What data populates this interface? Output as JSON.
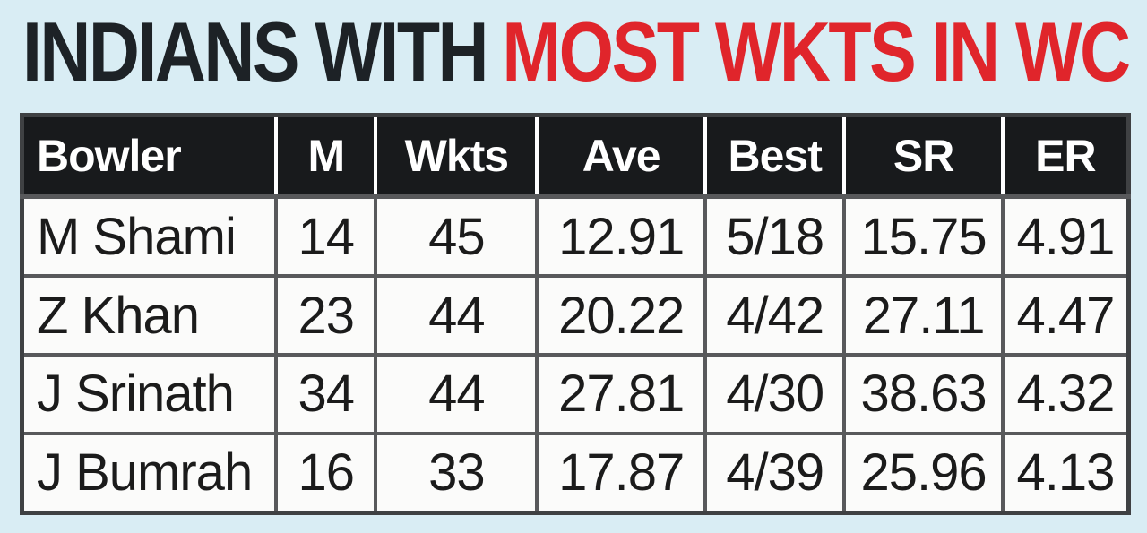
{
  "title": {
    "part1": "INDIANS WITH",
    "part2": "MOST WKTS IN WC"
  },
  "colors": {
    "background": "#d9edf4",
    "title_black": "#1d2226",
    "title_red": "#e0252b",
    "header_bg": "#181a1c",
    "header_text": "#ffffff",
    "cell_bg": "#fbfbfa",
    "grid": "#58595b"
  },
  "chart_data": {
    "type": "table",
    "title": "INDIANS WITH MOST WKTS IN WC",
    "columns": [
      "Bowler",
      "M",
      "Wkts",
      "Ave",
      "Best",
      "SR",
      "ER"
    ],
    "rows": [
      [
        "M Shami",
        "14",
        "45",
        "12.91",
        "5/18",
        "15.75",
        "4.91"
      ],
      [
        "Z Khan",
        "23",
        "44",
        "20.22",
        "4/42",
        "27.11",
        "4.47"
      ],
      [
        "J Srinath",
        "34",
        "44",
        "27.81",
        "4/30",
        "38.63",
        "4.32"
      ],
      [
        "J Bumrah",
        "16",
        "33",
        "17.87",
        "4/39",
        "25.96",
        "4.13"
      ]
    ]
  }
}
